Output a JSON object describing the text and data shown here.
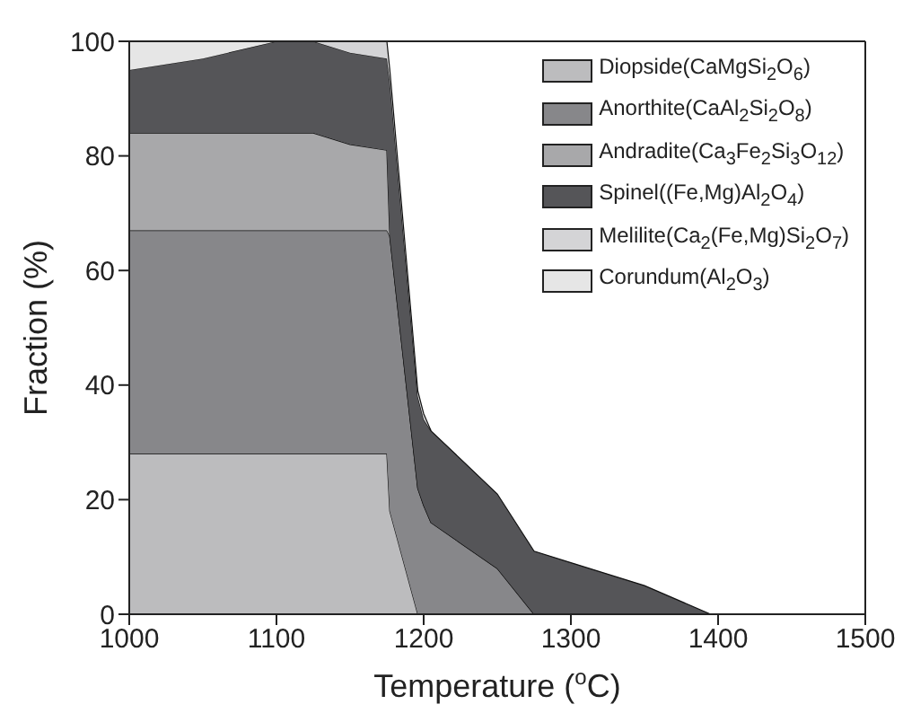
{
  "chart_data": {
    "type": "area",
    "stacked": true,
    "xlabel": "Temperature ($^{o}$C)",
    "ylabel": "Fraction (%)",
    "x": [
      1000,
      1050,
      1100,
      1125,
      1150,
      1175,
      1177,
      1196,
      1200,
      1205,
      1250,
      1275,
      1300,
      1350,
      1395
    ],
    "series": [
      {
        "name": "Diopside(CaMgSi$_{2}$O$_{6}$)",
        "color": "#bcbcbe",
        "values": [
          28,
          28,
          28,
          28,
          28,
          28,
          18,
          0,
          0,
          0,
          0,
          0,
          0,
          0,
          0
        ]
      },
      {
        "name": "Anorthite(CaAl$_{2}$Si$_{2}$O$_{8}$)",
        "color": "#87878a",
        "values": [
          39,
          39,
          39,
          39,
          39,
          39,
          48,
          22,
          19,
          16,
          8,
          0,
          0,
          0,
          0
        ]
      },
      {
        "name": "Andradite(Ca$_{3}$Fe$_{2}$Si$_{3}$O$_{12}$)",
        "color": "#a8a8aa",
        "values": [
          17,
          17,
          17,
          17,
          15,
          14,
          0,
          0,
          0,
          0,
          0,
          0,
          0,
          0,
          0
        ]
      },
      {
        "name": "Spinel((Fe,Mg)Al$_{2}$O$_{4}$)",
        "color": "#555558",
        "values": [
          11,
          13,
          16,
          16,
          16,
          16,
          27,
          16,
          15,
          16,
          13,
          11,
          9,
          5,
          0
        ]
      },
      {
        "name": "Melilite(Ca$_{2}$(Fe,Mg)Si$_{2}$O$_{7}$)",
        "color": "#d4d4d6",
        "values": [
          null,
          null,
          null,
          0,
          2,
          3,
          2,
          1,
          1,
          0,
          null,
          null,
          null,
          null,
          null
        ]
      },
      {
        "name": "Corundum(Al$_{2}$O$_{3}$)",
        "color": "#e6e6e6",
        "values": [
          5,
          3,
          0,
          null,
          null,
          null,
          null,
          null,
          null,
          null,
          null,
          null,
          null,
          null,
          null
        ]
      }
    ],
    "xlim": [
      1000,
      1500
    ],
    "xticks": [
      1000,
      1100,
      1200,
      1300,
      1400,
      1500
    ],
    "ylim": [
      0,
      100
    ],
    "yticks": [
      0,
      20,
      40,
      60,
      80,
      100
    ],
    "legend": "top right",
    "grid": false
  }
}
